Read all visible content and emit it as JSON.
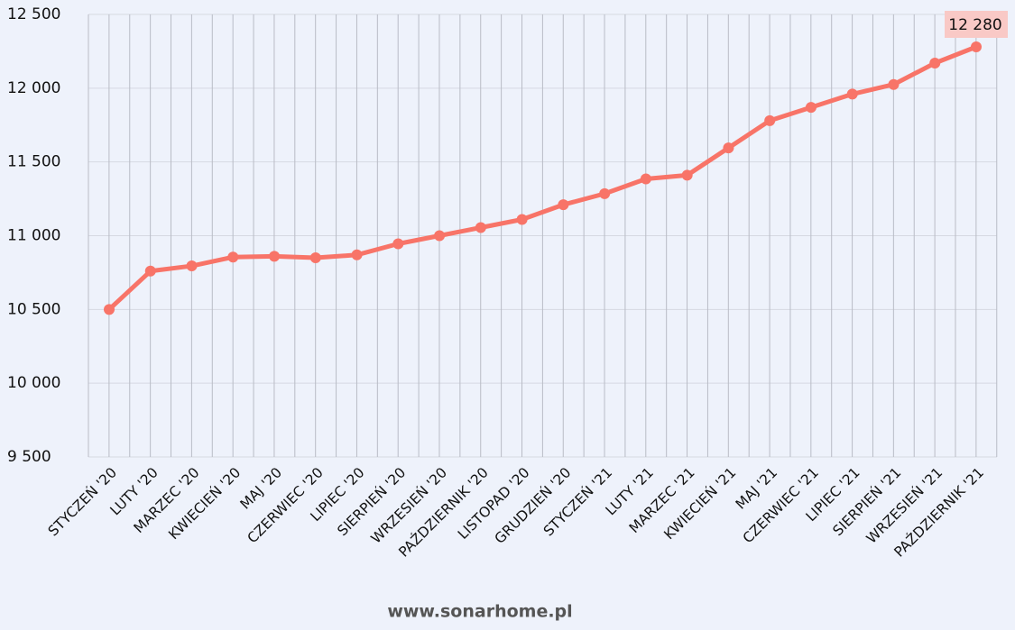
{
  "chart_data": {
    "type": "line",
    "categories": [
      "STYCZEŃ '20",
      "LUTY '20",
      "MARZEC '20",
      "KWIECIEŃ '20",
      "MAJ '20",
      "CZERWIEC '20",
      "LIPIEC '20",
      "SIERPIEŃ '20",
      "WRZESIEŃ '20",
      "PAŹDZIERNIK '20",
      "LISTOPAD '20",
      "GRUDZIEŃ '20",
      "STYCZEŃ '21",
      "LUTY '21",
      "MARZEC '21",
      "KWIECIEŃ '21",
      "MAJ '21",
      "CZERWIEC '21",
      "LIPIEC '21",
      "SIERPIEŃ '21",
      "WRZESIEŃ '21",
      "PAŹDZIERNIK '21"
    ],
    "values": [
      10500,
      10760,
      10795,
      10855,
      10860,
      10850,
      10870,
      10945,
      11000,
      11055,
      11110,
      11210,
      11285,
      11385,
      11410,
      11595,
      11780,
      11870,
      11960,
      12025,
      12170,
      12280
    ],
    "value_labels": [
      null,
      null,
      null,
      null,
      null,
      null,
      null,
      null,
      null,
      null,
      null,
      null,
      null,
      null,
      null,
      null,
      null,
      null,
      null,
      null,
      null,
      "12 280"
    ],
    "color": "#f87468",
    "ylim": [
      9500,
      12500
    ],
    "yticks": [
      {
        "value": 9500,
        "label": "9 500"
      },
      {
        "value": 10000,
        "label": "10 000"
      },
      {
        "value": 10500,
        "label": "10 500"
      },
      {
        "value": 11000,
        "label": "11 000"
      },
      {
        "value": 11500,
        "label": "11 500"
      },
      {
        "value": 12000,
        "label": "12 000"
      },
      {
        "value": 12500,
        "label": "12 500"
      }
    ],
    "grid": true
  },
  "footer": "www.sonarhome.pl"
}
